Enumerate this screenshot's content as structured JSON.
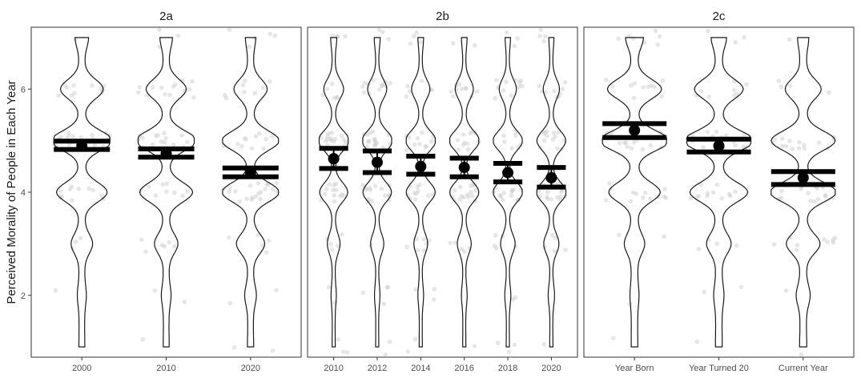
{
  "chart_data": {
    "type": "violin",
    "ylabel": "Perceived Morality of People in Each Year",
    "ylim": [
      0.8,
      7.2
    ],
    "yticks": [
      2,
      4,
      6
    ],
    "grid": false,
    "panels": [
      {
        "title": "2a",
        "categories": [
          "2000",
          "2010",
          "2020"
        ],
        "means": [
          4.9,
          4.75,
          4.38
        ],
        "ci_low": [
          4.83,
          4.68,
          4.3
        ],
        "ci_high": [
          4.99,
          4.84,
          4.47
        ],
        "half_width": [
          0.35,
          0.35,
          0.35
        ]
      },
      {
        "title": "2b",
        "categories": [
          "2010",
          "2012",
          "2014",
          "2016",
          "2018",
          "2020"
        ],
        "means": [
          4.65,
          4.58,
          4.5,
          4.48,
          4.38,
          4.28
        ],
        "ci_low": [
          4.46,
          4.38,
          4.35,
          4.3,
          4.2,
          4.1
        ],
        "ci_high": [
          4.85,
          4.8,
          4.7,
          4.66,
          4.56,
          4.48
        ],
        "half_width": [
          0.35,
          0.35,
          0.35,
          0.35,
          0.35,
          0.35
        ]
      },
      {
        "title": "2c",
        "categories": [
          "Year Born",
          "Year Turned 20",
          "Current Year"
        ],
        "means": [
          5.2,
          4.9,
          4.28
        ],
        "ci_low": [
          5.06,
          4.78,
          4.15
        ],
        "ci_high": [
          5.33,
          5.03,
          4.4
        ],
        "half_width": [
          0.4,
          0.4,
          0.4
        ]
      }
    ]
  }
}
